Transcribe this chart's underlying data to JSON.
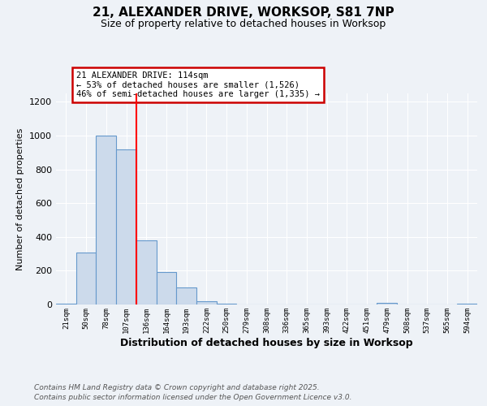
{
  "title_line1": "21, ALEXANDER DRIVE, WORKSOP, S81 7NP",
  "title_line2": "Size of property relative to detached houses in Worksop",
  "xlabel": "Distribution of detached houses by size in Worksop",
  "ylabel": "Number of detached properties",
  "footer_line1": "Contains HM Land Registry data © Crown copyright and database right 2025.",
  "footer_line2": "Contains public sector information licensed under the Open Government Licence v3.0.",
  "annotation_line1": "21 ALEXANDER DRIVE: 114sqm",
  "annotation_line2": "← 53% of detached houses are smaller (1,526)",
  "annotation_line3": "46% of semi-detached houses are larger (1,335) →",
  "bar_color": "#ccdaeb",
  "bar_edge_color": "#6699cc",
  "categories": [
    "21sqm",
    "50sqm",
    "78sqm",
    "107sqm",
    "136sqm",
    "164sqm",
    "193sqm",
    "222sqm",
    "250sqm",
    "279sqm",
    "308sqm",
    "336sqm",
    "365sqm",
    "393sqm",
    "422sqm",
    "451sqm",
    "479sqm",
    "508sqm",
    "537sqm",
    "565sqm",
    "594sqm"
  ],
  "values": [
    5,
    310,
    1000,
    920,
    380,
    190,
    100,
    20,
    5,
    0,
    0,
    0,
    0,
    0,
    0,
    0,
    10,
    0,
    0,
    0,
    5
  ],
  "red_line_index": 4,
  "ylim": [
    0,
    1250
  ],
  "yticks": [
    0,
    200,
    400,
    600,
    800,
    1000,
    1200
  ],
  "background_color": "#eef2f7",
  "plot_bg_color": "#eef2f7",
  "grid_color": "#ffffff",
  "annotation_box_facecolor": "#ffffff",
  "annotation_border_color": "#cc0000",
  "footer_color": "#555555"
}
